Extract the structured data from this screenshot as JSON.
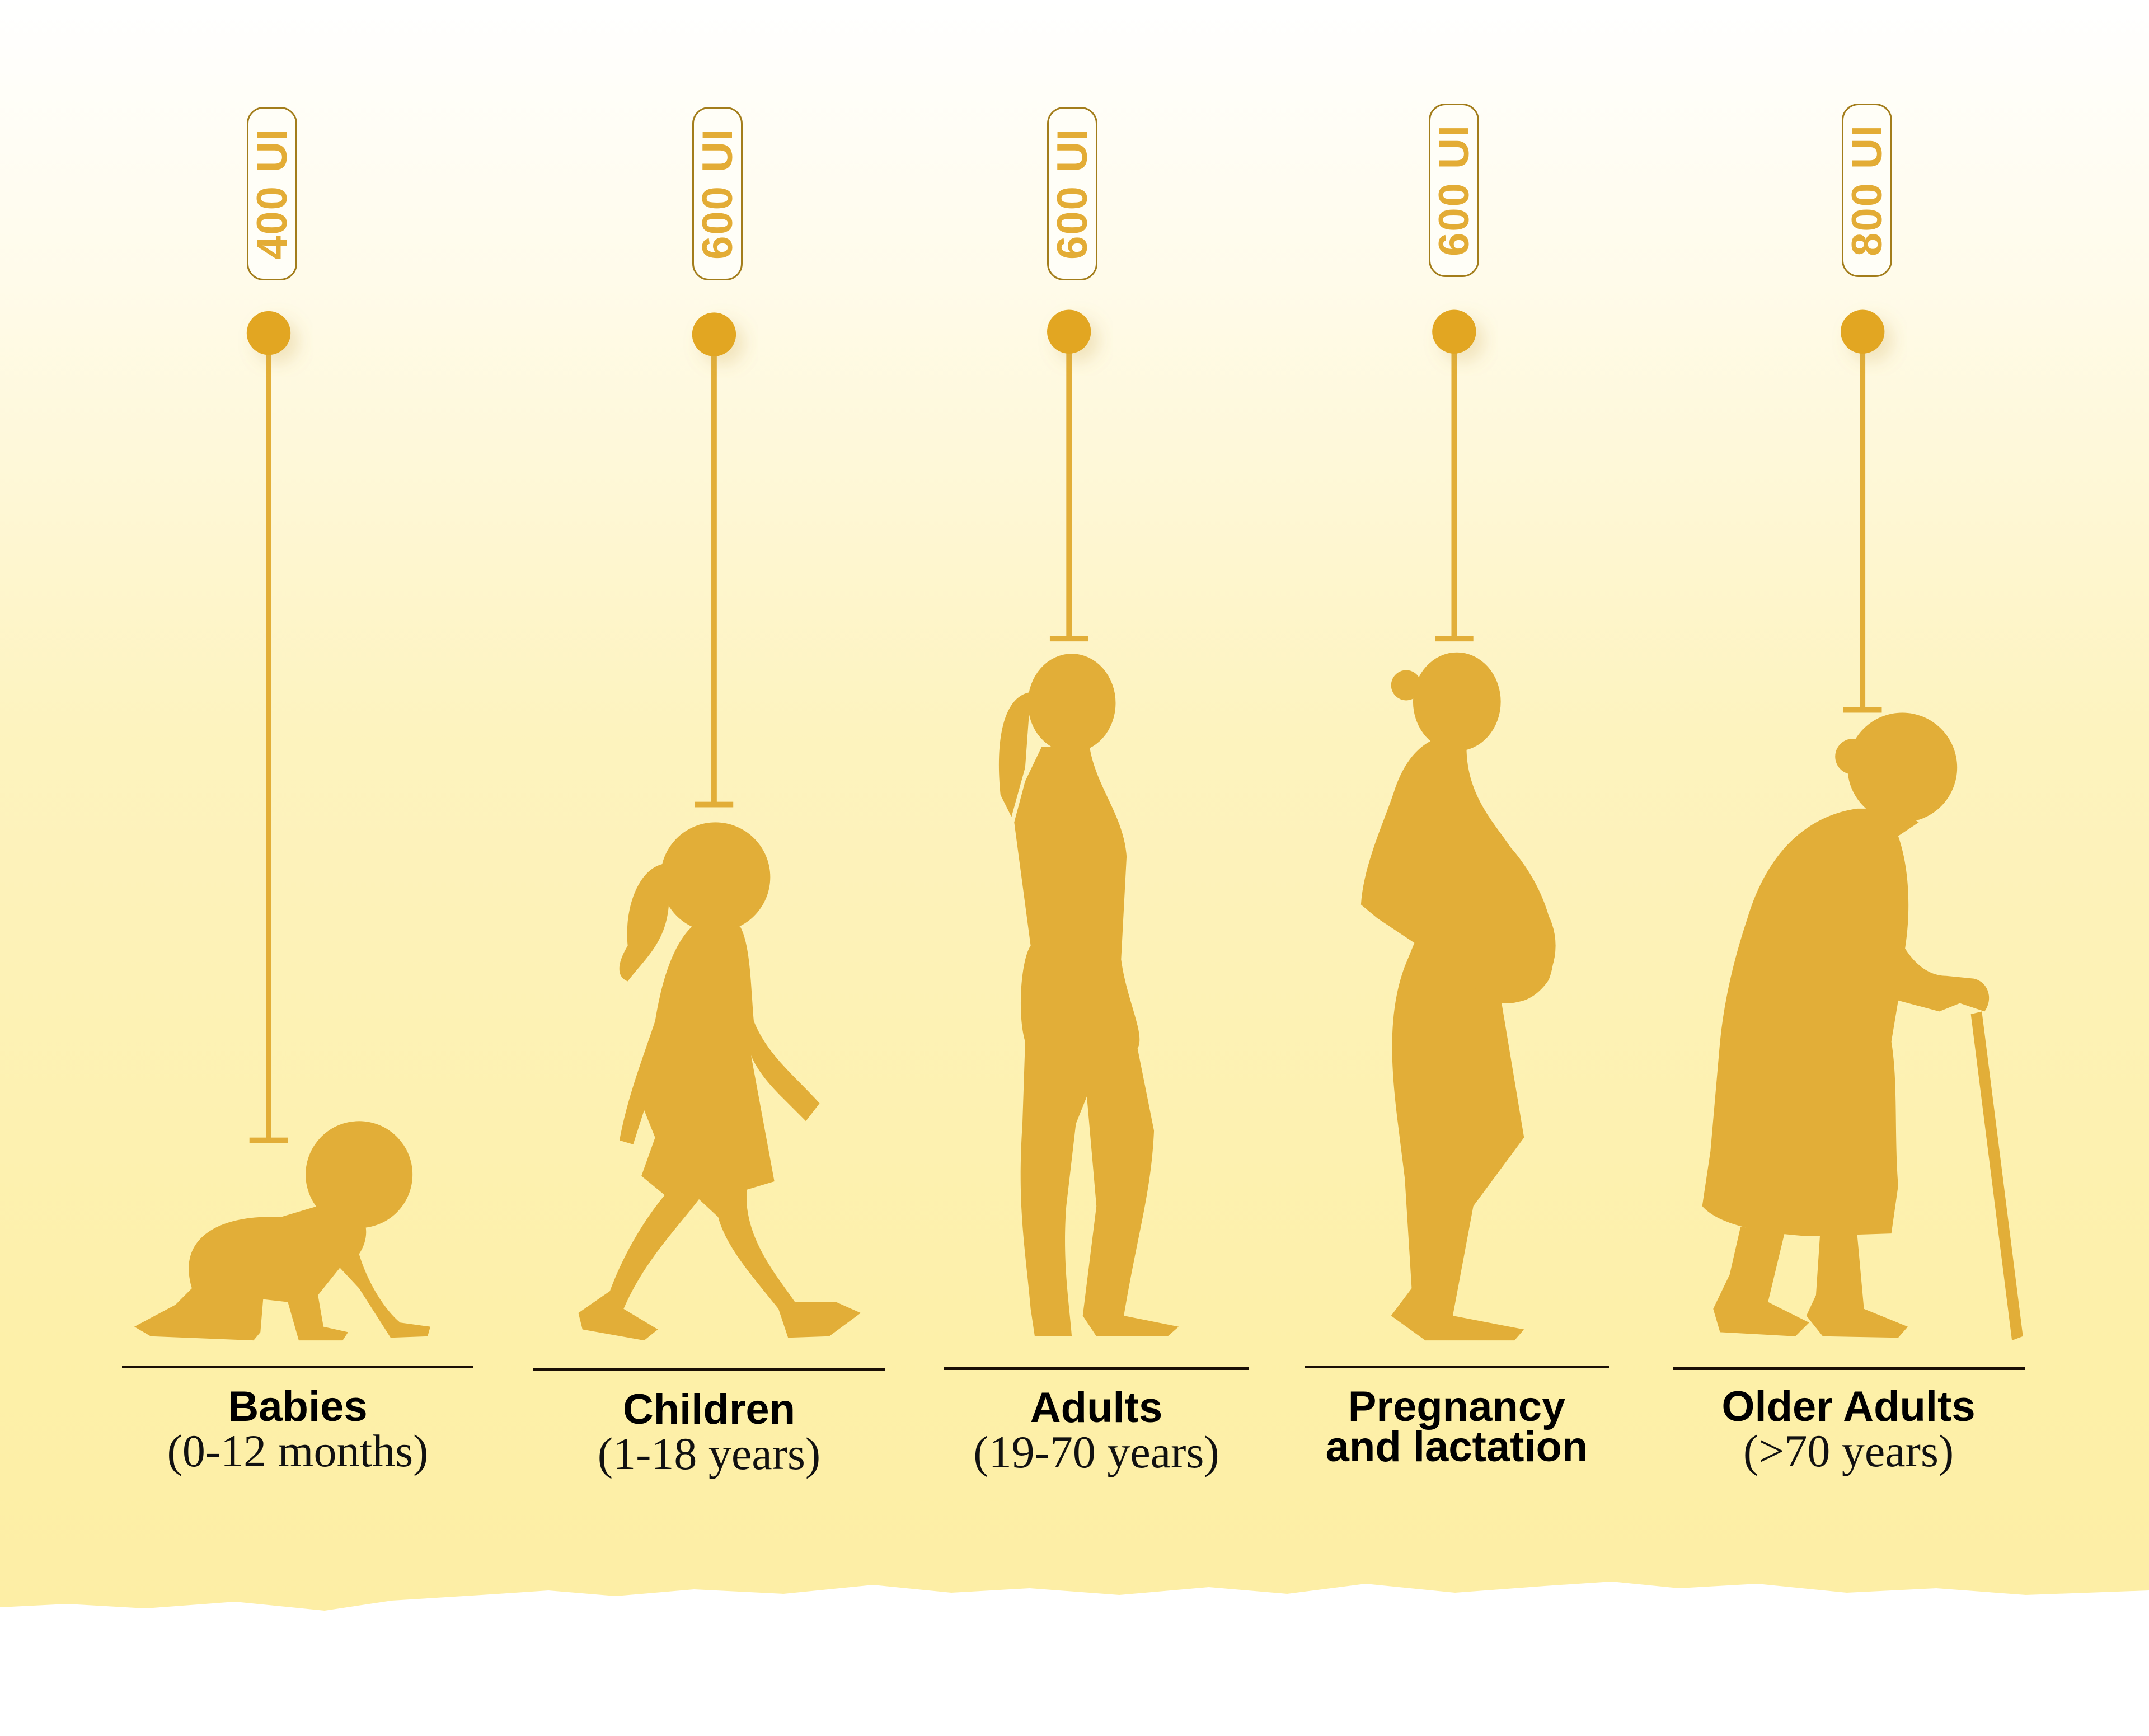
{
  "colors": {
    "accent": "#e2ae38",
    "dot": "#e2a620",
    "label_text": "#e3ac35",
    "label_border": "#a37d1b",
    "background": "#fdf0a9"
  },
  "groups": [
    {
      "value": "400 UI",
      "title": "Babies",
      "subtitle": "(0-12 months)",
      "icon": "crawling-baby-silhouette"
    },
    {
      "value": "600 UI",
      "title": "Children",
      "subtitle": "(1-18 years)",
      "icon": "walking-girl-silhouette"
    },
    {
      "value": "600 UI",
      "title": "Adults",
      "subtitle": "(19-70 years)",
      "icon": "standing-woman-silhouette"
    },
    {
      "value": "600 UI",
      "title": "Pregnancy\nand lactation",
      "title_line1": "Pregnancy",
      "title_line2": "and lactation",
      "icon": "pregnant-woman-silhouette"
    },
    {
      "value": "800 UI",
      "title": "Older Adults",
      "subtitle": "(>70 years)",
      "icon": "elderly-woman-with-cane-silhouette"
    }
  ]
}
